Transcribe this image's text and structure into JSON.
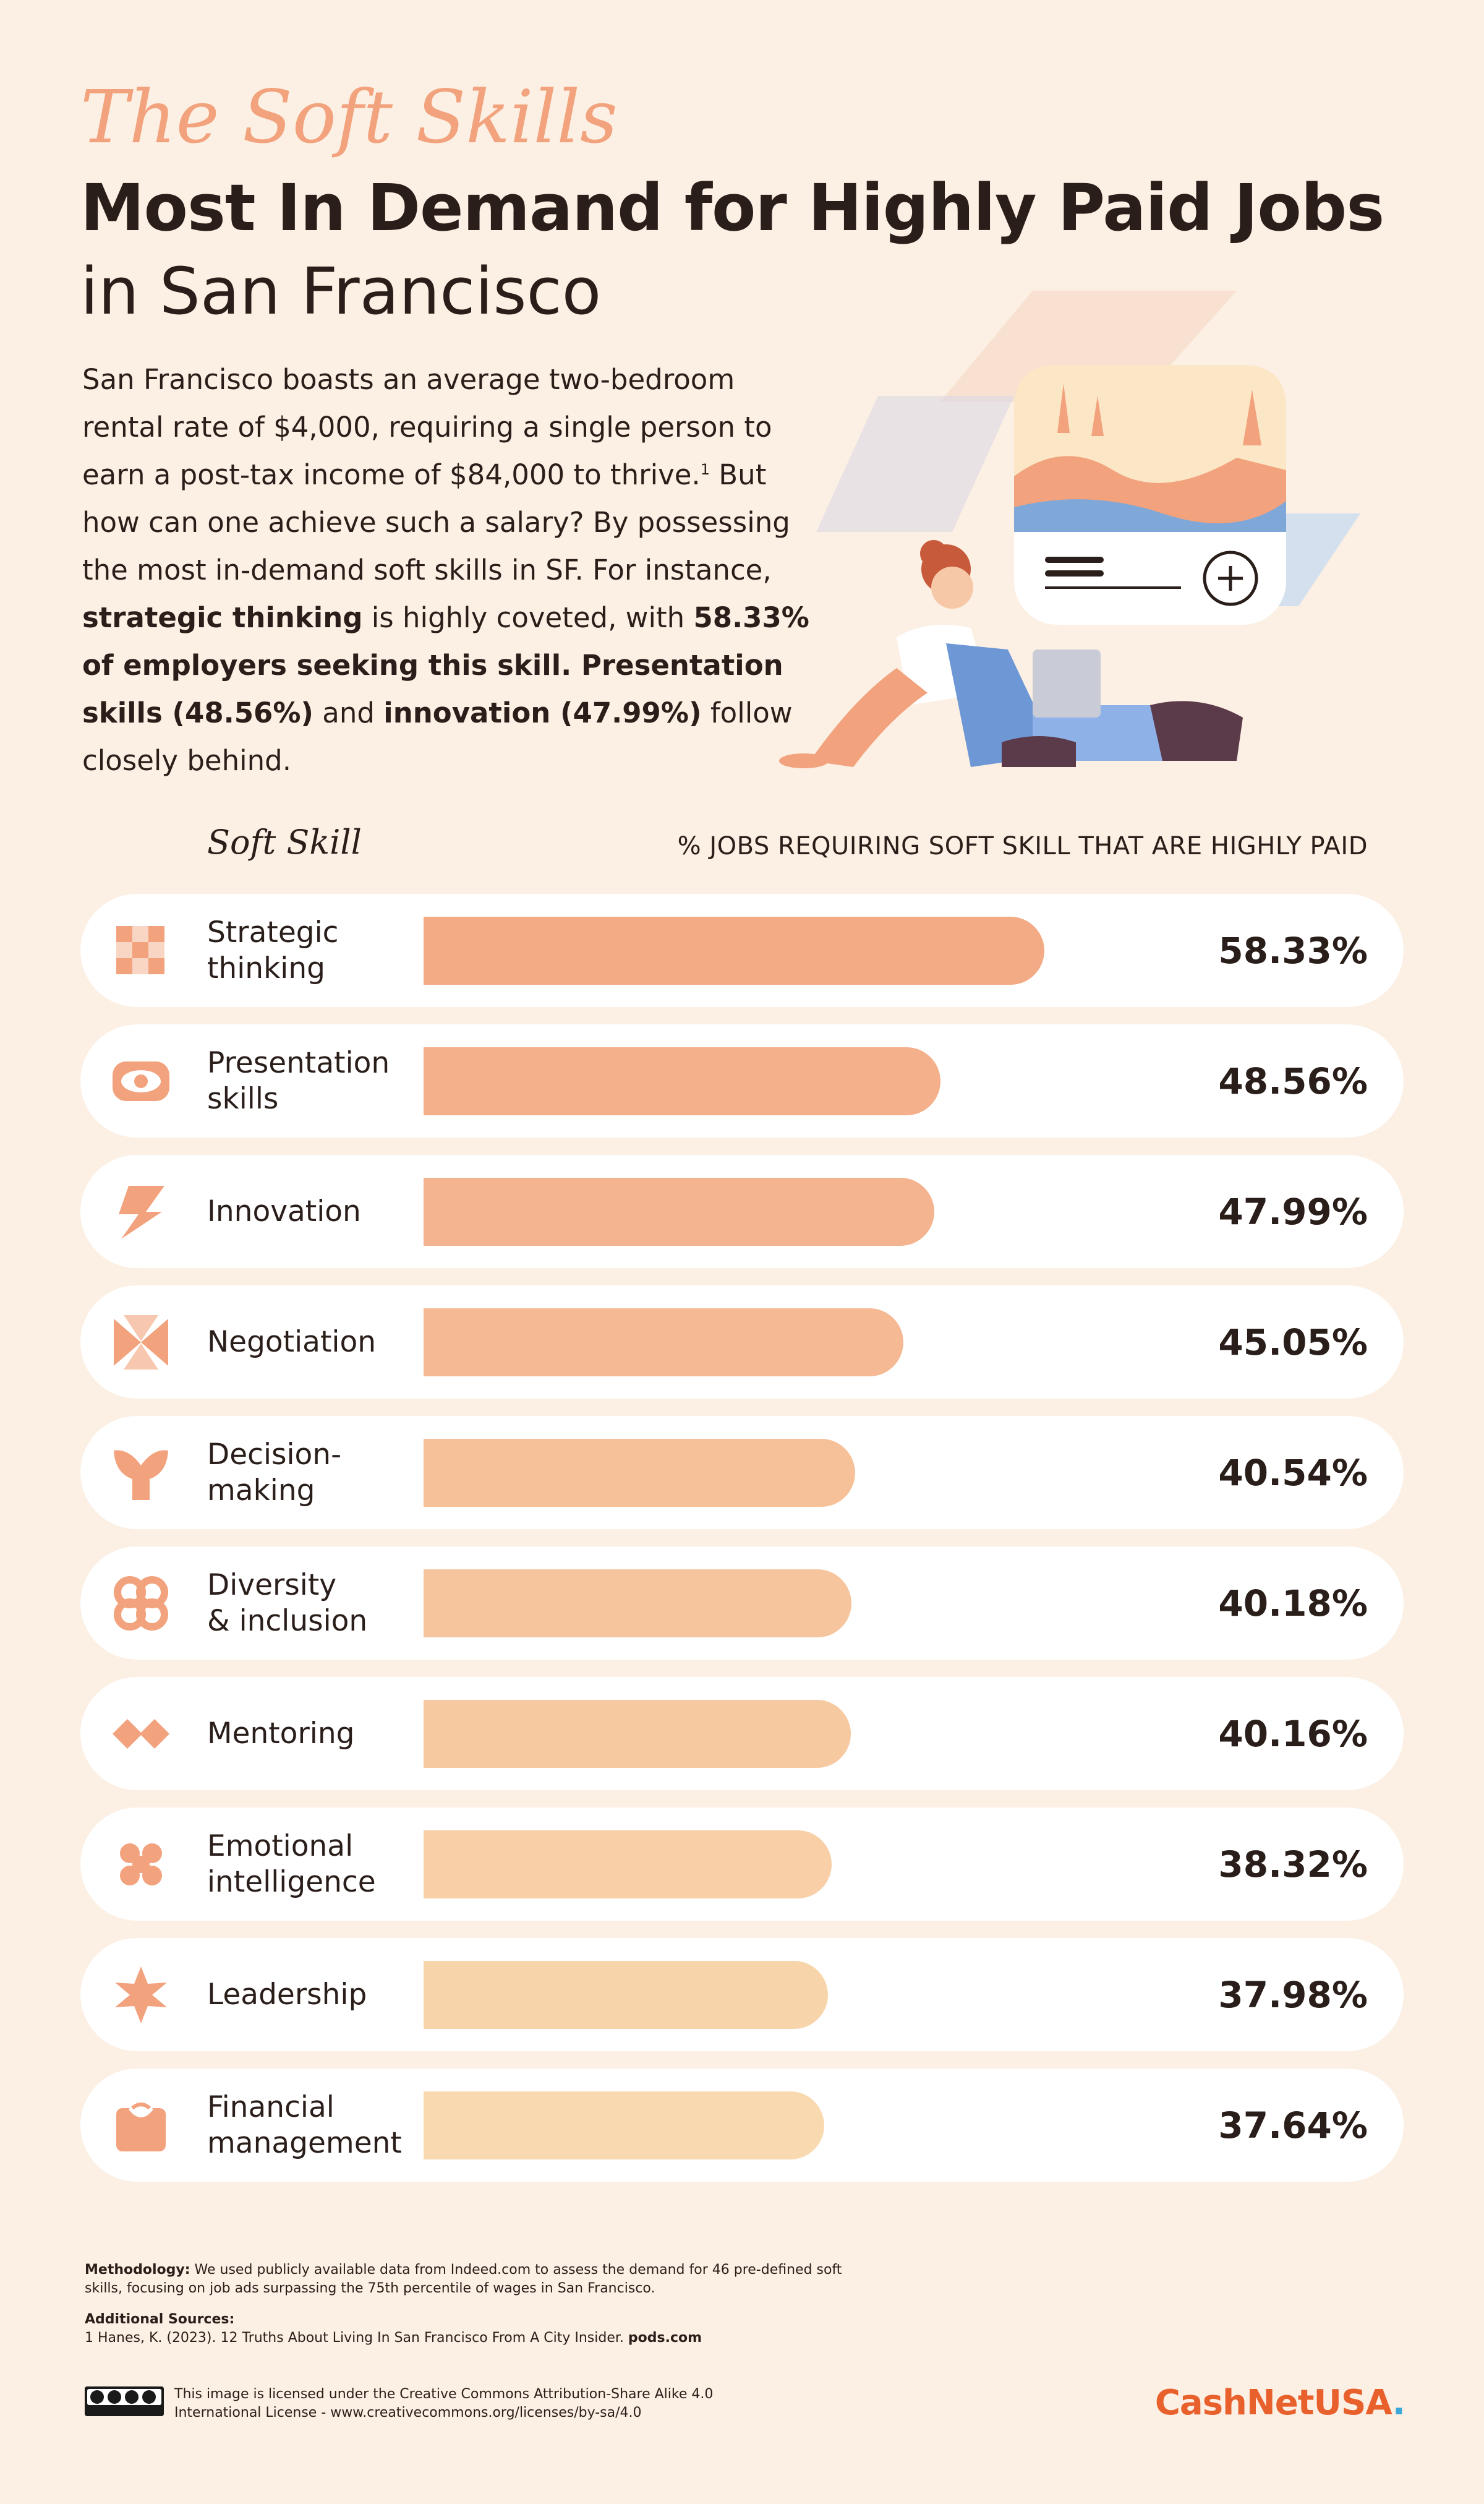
{
  "header": {
    "script_title": "The Soft Skills",
    "main_title": "Most In Demand for Highly Paid Jobs",
    "sub_title": "in San Francisco"
  },
  "intro": {
    "p1": "San Francisco boasts an average two-bedroom rental rate of $4,000, requiring a single person to earn a post-tax income of $84,000 to thrive.",
    "footnote_mark": "1",
    "p2": " But how can one achieve such a salary? By possessing the most in-demand soft skills in SF. For instance, ",
    "b1": "strategic thinking",
    "p3": " is highly coveted, with ",
    "b2": "58.33% of employers seeking this skill. Presentation skills (48.56%)",
    "p4": " and ",
    "b3": "innovation (47.99%)",
    "p5": " follow closely behind."
  },
  "columns": {
    "left": "Soft Skill",
    "right": "% JOBS REQUIRING SOFT SKILL THAT ARE HIGHLY PAID"
  },
  "chart_data": {
    "type": "bar",
    "orientation": "horizontal",
    "categories": [
      "Strategic thinking",
      "Presentation skills",
      "Innovation",
      "Negotiation",
      "Decision-making",
      "Diversity & inclusion",
      "Mentoring",
      "Emotional intelligence",
      "Leadership",
      "Financial management"
    ],
    "display_labels": [
      "Strategic\nthinking",
      "Presentation\nskills",
      "Innovation",
      "Negotiation",
      "Decision-\nmaking",
      "Diversity\n& inclusion",
      "Mentoring",
      "Emotional\nintelligence",
      "Leadership",
      "Financial\nmanagement"
    ],
    "values": [
      58.33,
      48.56,
      47.99,
      45.05,
      40.54,
      40.18,
      40.16,
      38.32,
      37.98,
      37.64
    ],
    "value_labels": [
      "58.33%",
      "48.56%",
      "47.99%",
      "45.05%",
      "40.54%",
      "40.18%",
      "40.16%",
      "38.32%",
      "37.98%",
      "37.64%"
    ],
    "icons": [
      "checker-icon",
      "eye-icon",
      "lightning-icon",
      "bowtie-icon",
      "y-shape-icon",
      "swirl-icon",
      "diamonds-icon",
      "hearts-icon",
      "star-icon",
      "bag-icon"
    ],
    "bar_colors": [
      "#f3ab85",
      "#f4b08b",
      "#f4b48f",
      "#f5b993",
      "#f6c199",
      "#f6c59d",
      "#f7c9a0",
      "#f8cfa6",
      "#f8d4ab",
      "#f9d9b0"
    ],
    "icon_color": "#f2a27c",
    "xlim": [
      0,
      100
    ]
  },
  "footer": {
    "method_label": "Methodology:",
    "method_text": " We used publicly available data from Indeed.com to assess the demand for 46 pre-defined soft skills, focusing on job ads surpassing the 75th percentile of wages in San Francisco.",
    "sources_label": "Additional Sources:",
    "source_1": "1 Hanes, K. (2023). 12 Truths About Living In San Francisco From A City Insider. ",
    "source_1_site": "pods.com",
    "license_text": "This image is licensed under the Creative Commons Attribution-Share Alike 4.0 International License - www.creativecommons.org/licenses/by-sa/4.0",
    "brand": "CashNetUSA",
    "brand_dot": "."
  }
}
